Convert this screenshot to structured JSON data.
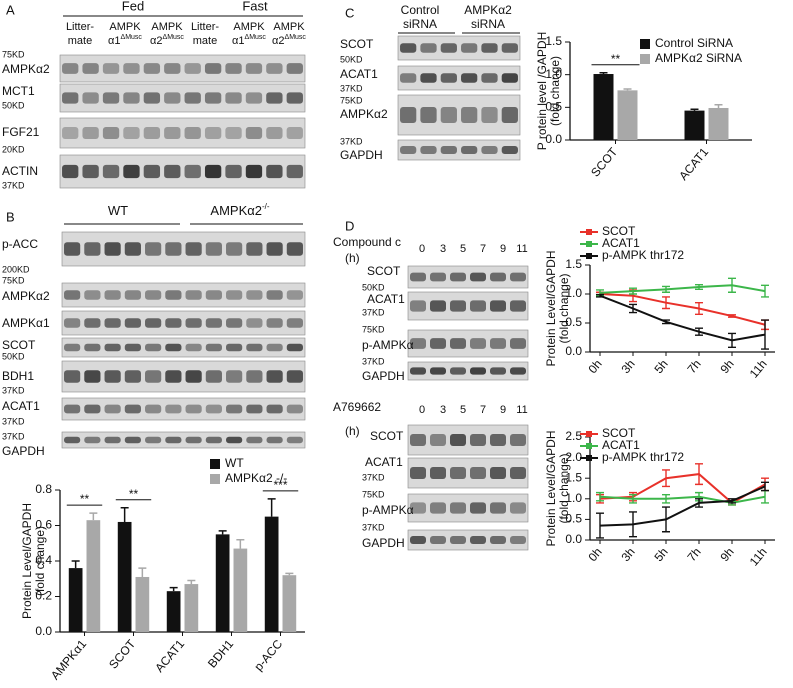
{
  "panel_a": {
    "letter": "A",
    "groups": [
      "Fed",
      "Fast"
    ],
    "lanes": [
      {
        "l1": "Litter-",
        "l2": "mate"
      },
      {
        "l1": "AMPK",
        "l2": "α1",
        "sup": "ΔMusc"
      },
      {
        "l1": "AMPK",
        "l2": "α2",
        "sup": "ΔMusc"
      },
      {
        "l1": "Litter-",
        "l2": "mate"
      },
      {
        "l1": "AMPK",
        "l2": "α1",
        "sup": "ΔMusc"
      },
      {
        "l1": "AMPK",
        "l2": "α2",
        "sup": "ΔMusc"
      }
    ],
    "rows": [
      "75KD",
      "AMPKα2",
      "MCT1",
      "50KD",
      "FGF21",
      "20KD",
      "ACTIN",
      "37KD"
    ]
  },
  "panel_b": {
    "letter": "B",
    "groups": [
      {
        "text": "WT"
      },
      {
        "text": "AMPKα2",
        "sup": "-/-"
      }
    ],
    "rows": [
      "p-ACC",
      "200KD",
      "75KD",
      "AMPKα2",
      "AMPKα1",
      "SCOT",
      "50KD",
      "BDH1",
      "37KD",
      "ACAT1",
      "37KD",
      "37KD",
      "GAPDH"
    ]
  },
  "panel_c": {
    "letter": "C",
    "groups": [
      [
        "Control",
        "siRNA"
      ],
      [
        "AMPKα2",
        "siRNA"
      ]
    ],
    "rows": [
      "SCOT",
      "50KD",
      "ACAT1",
      "37KD",
      "75KD",
      "AMPKα2",
      "37KD",
      "GAPDH"
    ]
  },
  "panel_d": {
    "letter": "D",
    "blots": [
      {
        "treatment": "Compound c",
        "unit": "(h)",
        "times": [
          "0",
          "3",
          "5",
          "7",
          "9",
          "11"
        ],
        "rows": [
          "SCOT",
          "50KD",
          "ACAT1",
          "37KD",
          "75KD",
          "p-AMPKα",
          "37KD",
          "GAPDH"
        ]
      },
      {
        "treatment": "A769662",
        "unit": "(h)",
        "times": [
          "0",
          "3",
          "5",
          "7",
          "9",
          "11"
        ],
        "rows": [
          "SCOT",
          "ACAT1",
          "37KD",
          "75KD",
          "p-AMPKα",
          "37KD",
          "GAPDH"
        ]
      }
    ]
  },
  "chart_data": [
    {
      "type": "bar",
      "y_label": [
        "Protein Level/GAPDH",
        "(fold change)"
      ],
      "categories": [
        "AMPKα1",
        "SCOT",
        "ACAT1",
        "BDH1",
        "p-ACC"
      ],
      "series": [
        {
          "name": "WT",
          "color": "#111111",
          "values": [
            0.36,
            0.62,
            0.23,
            0.55,
            0.65
          ],
          "errors": [
            0.04,
            0.08,
            0.02,
            0.02,
            0.1
          ]
        },
        {
          "name": "AMPKα2 -/-",
          "color": "#a8a8a8",
          "values": [
            0.63,
            0.31,
            0.27,
            0.47,
            0.32
          ],
          "errors": [
            0.04,
            0.05,
            0.02,
            0.05,
            0.01
          ]
        }
      ],
      "annotations": [
        "**",
        "**",
        "***"
      ],
      "ylim": [
        0,
        0.8
      ],
      "yticks": [
        {
          "value": 0,
          "label": "0.0"
        },
        0.2,
        0.4,
        0.6,
        0.8
      ]
    },
    {
      "type": "bar",
      "y_label": [
        "P rotein level /GAPDH",
        "(fold change)"
      ],
      "categories": [
        "SCOT",
        "ACAT1"
      ],
      "series": [
        {
          "name": "Control SiRNA",
          "color": "#111111",
          "values": [
            1.01,
            0.45
          ],
          "errors": [
            0.02,
            0.02
          ]
        },
        {
          "name": "AMPKα2 SiRNA",
          "color": "#a8a8a8",
          "values": [
            0.76,
            0.49
          ],
          "errors": [
            0.02,
            0.05
          ]
        }
      ],
      "annotations": [
        "**"
      ],
      "ylim": [
        0,
        1.5
      ],
      "yticks": [
        {
          "value": 0,
          "label": "0.0"
        },
        0.5,
        {
          "value": 1,
          "label": "1.0"
        },
        1.5
      ]
    },
    {
      "type": "line",
      "y_label": [
        "Protein Level/GAPDH",
        "(fold change)"
      ],
      "categories": [
        "0h",
        "3h",
        "5h",
        "7h",
        "9h",
        "11h"
      ],
      "series": [
        {
          "name": "SCOT",
          "color": "#e8312a",
          "values": [
            1.0,
            0.97,
            0.85,
            0.75,
            0.62,
            0.47
          ],
          "errors": [
            0.03,
            0.1,
            0.1,
            0.1,
            0.02,
            0.08
          ]
        },
        {
          "name": "ACAT1",
          "color": "#3cb64a",
          "values": [
            1.02,
            1.05,
            1.08,
            1.12,
            1.15,
            1.05
          ],
          "errors": [
            0.05,
            0.05,
            0.05,
            0.04,
            0.12,
            0.1
          ]
        },
        {
          "name": "p-AMPK  thr172",
          "color": "#111111",
          "values": [
            0.97,
            0.75,
            0.52,
            0.35,
            0.2,
            0.3
          ],
          "errors": [
            0.02,
            0.07,
            0.03,
            0.06,
            0.12,
            0.25
          ]
        }
      ],
      "ylim": [
        0,
        1.5
      ],
      "yticks": [
        {
          "value": 0,
          "label": "0.0"
        },
        0.5,
        {
          "value": 1,
          "label": "1.0"
        },
        1.5
      ]
    },
    {
      "type": "line",
      "y_label": [
        "Protein Level/GAPDH",
        "(fold change)"
      ],
      "categories": [
        "0h",
        "3h",
        "5h",
        "7h",
        "9h",
        "11h"
      ],
      "series": [
        {
          "name": "SCOT",
          "color": "#e8312a",
          "values": [
            1.0,
            1.05,
            1.5,
            1.6,
            0.9,
            1.35
          ],
          "errors": [
            0.1,
            0.1,
            0.2,
            0.25,
            0.05,
            0.15
          ]
        },
        {
          "name": "ACAT1",
          "color": "#3cb64a",
          "values": [
            1.05,
            1.0,
            1.0,
            1.05,
            0.9,
            1.05
          ],
          "errors": [
            0.1,
            0.1,
            0.1,
            0.1,
            0.05,
            0.15
          ]
        },
        {
          "name": "p-AMPK  thr172",
          "color": "#111111",
          "values": [
            0.35,
            0.38,
            0.5,
            0.9,
            0.95,
            1.3
          ],
          "errors": [
            0.3,
            0.3,
            0.3,
            0.1,
            0.05,
            0.1
          ]
        }
      ],
      "ylim": [
        0,
        2.5
      ],
      "yticks": [
        {
          "value": 0,
          "label": "0.0"
        },
        0.5,
        {
          "value": 1,
          "label": "1.0"
        },
        1.5,
        {
          "value": 2,
          "label": "2.0"
        },
        2.5
      ]
    }
  ]
}
